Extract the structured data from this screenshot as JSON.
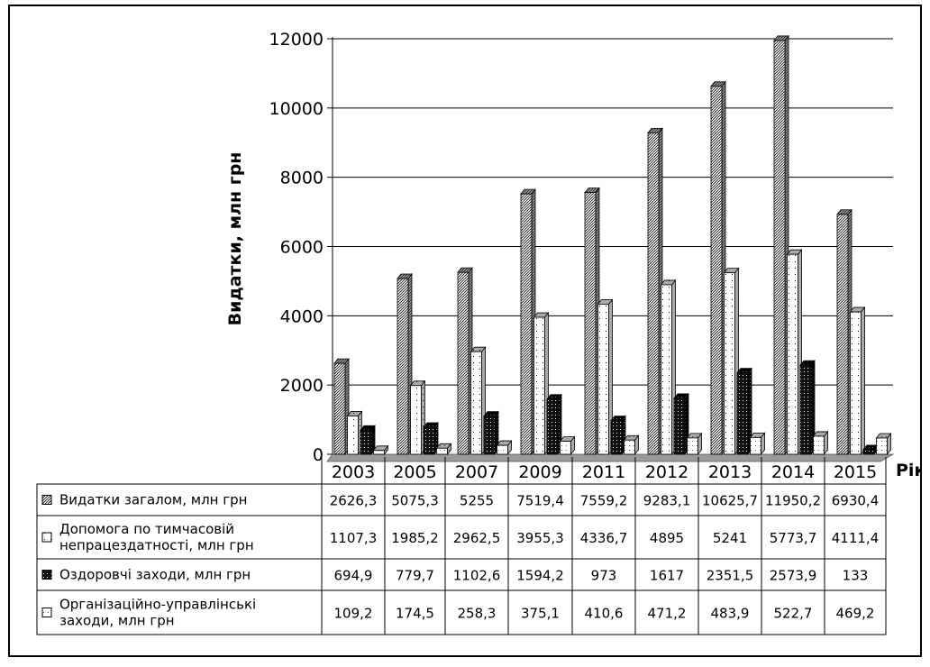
{
  "chart_data": {
    "type": "bar",
    "ylabel": "Видатки, млн грн",
    "xlabel": "Рік",
    "ylim": [
      0,
      12000
    ],
    "yticks": [
      "0",
      "2000",
      "4000",
      "6000",
      "8000",
      "10000",
      "12000"
    ],
    "categories": [
      "2003",
      "2005",
      "2007",
      "2009",
      "2011",
      "2012",
      "2013",
      "2014",
      "2015"
    ],
    "grid": "horizontal",
    "legend": "table-below",
    "series": [
      {
        "name": "Видатки загалом, млн грн",
        "pattern": "diamond",
        "values": [
          2626.3,
          5075.3,
          5255,
          7519.4,
          7559.2,
          9283.1,
          10625.7,
          11950.2,
          6930.4
        ],
        "labels": [
          "2626,3",
          "5075,3",
          "5255",
          "7519,4",
          "7559,2",
          "9283,1",
          "10625,7",
          "11950,2",
          "6930,4"
        ]
      },
      {
        "name": "Допомога по тимчасовій непрацездатності, млн грн",
        "name_lines": [
          "Допомога по тимчасовій",
          "непрацездатності, млн грн"
        ],
        "pattern": "dots",
        "values": [
          1107.3,
          1985.2,
          2962.5,
          3955.3,
          4336.7,
          4895,
          5241,
          5773.7,
          4111.4
        ],
        "labels": [
          "1107,3",
          "1985,2",
          "2962,5",
          "3955,3",
          "4336,7",
          "4895",
          "5241",
          "5773,7",
          "4111,4"
        ]
      },
      {
        "name": "Оздоровчі заходи, млн грн",
        "pattern": "dense",
        "values": [
          694.9,
          779.7,
          1102.6,
          1594.2,
          973,
          1617,
          2351.5,
          2573.9,
          133
        ],
        "labels": [
          "694,9",
          "779,7",
          "1102,6",
          "1594,2",
          "973",
          "1617",
          "2351,5",
          "2573,9",
          "133"
        ]
      },
      {
        "name": "Організаційно-управлінські заходи, млн грн",
        "name_lines": [
          "Організаційно-управлінські",
          "заходи, млн грн"
        ],
        "pattern": "light",
        "values": [
          109.2,
          174.5,
          258.3,
          375.1,
          410.6,
          471.2,
          483.9,
          522.7,
          469.2
        ],
        "labels": [
          "109,2",
          "174,5",
          "258,3",
          "375,1",
          "410,6",
          "471,2",
          "483,9",
          "522,7",
          "469,2"
        ]
      }
    ]
  }
}
